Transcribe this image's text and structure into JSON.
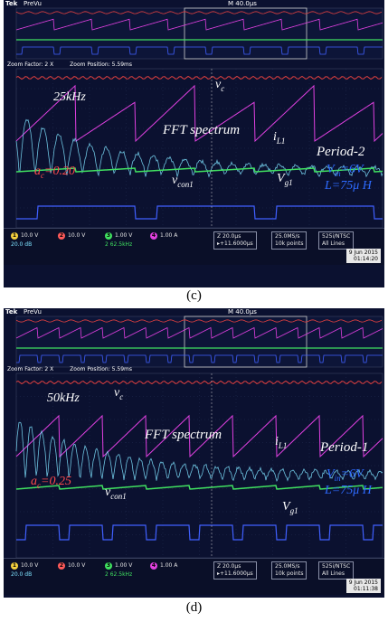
{
  "panels": [
    {
      "id": "c",
      "caption": "(c)",
      "header": {
        "brand": "Tek",
        "mode": "PreVu",
        "timebase": "M 40.0μs"
      },
      "zoom": {
        "factor": "Zoom Factor: 2 X",
        "position": "Zoom Position: 5.59ms"
      },
      "freq_label": "25kHz",
      "vc_label": "v",
      "vc_sub": "c",
      "il_label": "i",
      "il_sub": "L1",
      "fft_label": "FFT spectrum",
      "period_label": "Period-2",
      "ac_label": "a",
      "ac_sub": "c",
      "ac_value": "=0.20",
      "vin_label": "V",
      "vin_sub": "in",
      "vin_value": "=6V",
      "l_value": "L=75μ H",
      "vcon_label": "v",
      "vcon_sub": "con1",
      "vg_label": "V",
      "vg_sub": "g1",
      "status": {
        "ch1": "10.0 V",
        "ch2": "10.0 V",
        "ch3": "1.00 V",
        "ch4": "1.00 A",
        "fft": "20.0 dB",
        "fft_freq": "2 62.5kHz",
        "z_time": "Z 20.0μs",
        "trig": "▸+11.6000μs",
        "rate": "25.0MS/s",
        "points": "10k points",
        "std": "525i/NTSC",
        "lines": "All Lines",
        "date": "9 Jun 2015",
        "clock": "01:14:20"
      },
      "trace_colors": {
        "vc": "#e04040",
        "il": "#e040e0",
        "vcon": "#40e060",
        "vg": "#4060ff",
        "fft": "#7fe3ff"
      }
    },
    {
      "id": "d",
      "caption": "(d)",
      "header": {
        "brand": "Tek",
        "mode": "PreVu",
        "timebase": "M 40.0μs"
      },
      "zoom": {
        "factor": "Zoom Factor: 2 X",
        "position": "Zoom Position: 5.59ms"
      },
      "freq_label": "50kHz",
      "vc_label": "v",
      "vc_sub": "c",
      "il_label": "i",
      "il_sub": "L1",
      "fft_label": "FFT spectrum",
      "period_label": "Period-1",
      "ac_label": "a",
      "ac_sub": "c",
      "ac_value": "=0.25",
      "vin_label": "V",
      "vin_sub": "in",
      "vin_value": "=6V",
      "l_value": "L=75μ H",
      "vcon_label": "v",
      "vcon_sub": "con1",
      "vg_label": "V",
      "vg_sub": "g1",
      "status": {
        "ch1": "10.0 V",
        "ch2": "10.0 V",
        "ch3": "1.00 V",
        "ch4": "1.00 A",
        "fft": "20.0 dB",
        "fft_freq": "2 62.5kHz",
        "z_time": "Z 20.0μs",
        "trig": "▸+11.6000μs",
        "rate": "25.0MS/s",
        "points": "10k points",
        "std": "525i/NTSC",
        "lines": "All Lines",
        "date": "9 Jun 2015",
        "clock": "01:11:38"
      },
      "trace_colors": {
        "vc": "#e04040",
        "il": "#e040e0",
        "vcon": "#40e060",
        "vg": "#4060ff",
        "fft": "#7fe3ff"
      }
    }
  ]
}
